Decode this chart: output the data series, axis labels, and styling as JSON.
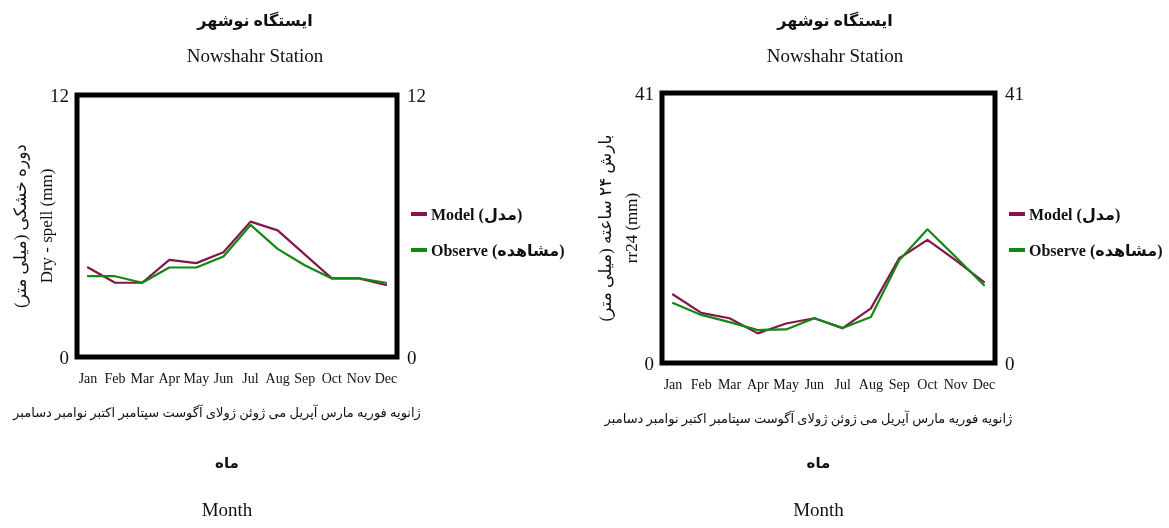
{
  "chart_data": [
    {
      "type": "line",
      "title": "ایستگاه نوشهر",
      "subtitle": "Nowshahr Station",
      "ylabel": "دوره خشکی (میلی متر)\nDry - spell (mm)",
      "xlabel": "ماه\nMonth",
      "annotations": [
        "ژانویه فوریه مارس آپریل می ژوئن ژولای آگوست سپتامبر اکتبر نوامبر دسامبر"
      ],
      "categories": [
        "Jan",
        "Feb",
        "Mar",
        "Apr",
        "May",
        "Jun",
        "Jul",
        "Aug",
        "Sep",
        "Oct",
        "Nov",
        "Dec"
      ],
      "series": [
        {
          "name": "Model (مدل)",
          "color": "#84144c",
          "values": [
            4.1,
            3.4,
            3.4,
            4.45,
            4.3,
            4.8,
            6.2,
            5.8,
            4.7,
            3.6,
            3.6,
            3.3
          ]
        },
        {
          "name": "Observe (مشاهده)",
          "color": "#118811",
          "values": [
            3.7,
            3.7,
            3.4,
            4.1,
            4.1,
            4.6,
            6.05,
            4.95,
            4.2,
            3.6,
            3.6,
            3.4
          ]
        }
      ],
      "ylim": [
        0,
        12
      ],
      "yticks": [
        0,
        12
      ],
      "y2lim": [
        0,
        12
      ],
      "y2ticks": [
        0,
        12
      ],
      "legend": "right"
    },
    {
      "type": "line",
      "title": "ایستگاه نوشهر",
      "subtitle": "Nowshahr Station",
      "ylabel": "بارش ۲۴ ساعته (میلی متر)\nrr24 (mm)",
      "xlabel": "ماه\nMonth",
      "annotations": [
        "ژانویه فوریه مارس آپریل می ژوئن ژولای آگوست سپتامبر اکتبر نوامبر دسامبر"
      ],
      "categories": [
        "Jan",
        "Feb",
        "Mar",
        "Apr",
        "May",
        "Jun",
        "Jul",
        "Aug",
        "Sep",
        "Oct",
        "Nov",
        "Dec"
      ],
      "series": [
        {
          "name": "Model (مدل)",
          "color": "#84144c",
          "values": [
            10.4,
            7.6,
            6.8,
            4.5,
            6.0,
            6.8,
            5.3,
            8.3,
            15.9,
            18.7,
            15.6,
            12.3
          ]
        },
        {
          "name": "Observe (مشاهده)",
          "color": "#118811",
          "values": [
            9.1,
            7.3,
            6.2,
            5.0,
            5.1,
            6.8,
            5.3,
            7.0,
            15.6,
            20.3,
            16.1,
            11.8
          ]
        }
      ],
      "ylim": [
        0,
        41
      ],
      "yticks": [
        0,
        41
      ],
      "y2lim": [
        0,
        41
      ],
      "y2ticks": [
        0,
        41
      ],
      "legend": "right"
    }
  ]
}
